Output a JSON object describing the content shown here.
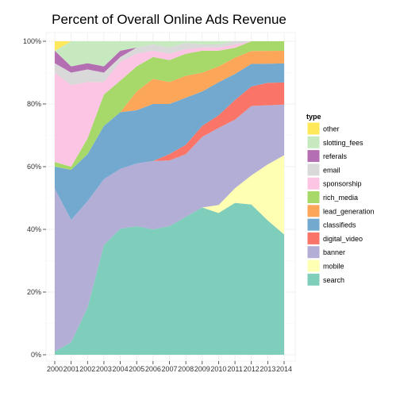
{
  "chart_data": {
    "type": "area",
    "stacked": true,
    "normalized": true,
    "title": "Percent of Overall Online Ads Revenue",
    "xlabel": "",
    "ylabel": "",
    "x": [
      "2000",
      "2001",
      "2002",
      "2003",
      "2004",
      "2005",
      "2006",
      "2007",
      "2008",
      "2009",
      "2010",
      "2011",
      "2012",
      "2013",
      "2014"
    ],
    "ylim": [
      0,
      100
    ],
    "yticks": [
      "0%",
      "20%",
      "40%",
      "60%",
      "80%",
      "100%"
    ],
    "legend": {
      "title": "type",
      "position": "right"
    },
    "background": "#ffffff",
    "grid": true,
    "series": [
      {
        "name": "search",
        "color": "#7fcdbb",
        "values": [
          1,
          4,
          15,
          35,
          40,
          41,
          40,
          41,
          44,
          47,
          45,
          46.5,
          46.5,
          42,
          38
        ]
      },
      {
        "name": "mobile",
        "color": "#ffffb3",
        "values": [
          0,
          0,
          0,
          0,
          0,
          0,
          0,
          0,
          0,
          0,
          2.5,
          4.5,
          9,
          17.5,
          25
        ]
      },
      {
        "name": "banner",
        "color": "#b3aed5",
        "values": [
          52,
          39,
          34,
          21,
          19,
          20,
          21.8,
          21,
          20,
          22.5,
          24.5,
          21,
          21.5,
          18.5,
          16
        ]
      },
      {
        "name": "digital_video",
        "color": "#fb7468",
        "values": [
          0,
          0,
          0,
          0,
          0,
          0,
          0,
          2,
          3,
          3.5,
          4,
          6,
          6,
          7,
          7
        ]
      },
      {
        "name": "classifieds",
        "color": "#74a9cf",
        "values": [
          7,
          16,
          15,
          17,
          18,
          17,
          18.2,
          16,
          15,
          11,
          10.5,
          8,
          7,
          6,
          6
        ]
      },
      {
        "name": "lead_generation",
        "color": "#fca65a",
        "values": [
          0,
          0,
          0,
          0,
          0,
          6,
          8,
          7,
          7,
          6,
          5,
          5,
          4,
          4,
          4
        ]
      },
      {
        "name": "rich_media",
        "color": "#a6d96a",
        "values": [
          1.5,
          1,
          5,
          10,
          10,
          8,
          7,
          7,
          7,
          7,
          5,
          3,
          3,
          3,
          3
        ]
      },
      {
        "name": "sponsorship",
        "color": "#fcc5e3",
        "values": [
          28.5,
          26,
          18,
          4,
          6,
          4,
          2,
          2,
          1.5,
          1,
          1,
          1,
          0,
          0,
          0
        ]
      },
      {
        "name": "email",
        "color": "#d9d9d9",
        "values": [
          3,
          4,
          4,
          3,
          1.5,
          2,
          2,
          2,
          2,
          1,
          1,
          1,
          0,
          0,
          0
        ]
      },
      {
        "name": "referals",
        "color": "#b46fb2",
        "values": [
          4,
          2,
          2,
          2,
          2,
          0,
          0,
          0,
          0,
          0,
          0,
          0,
          0,
          0,
          0
        ]
      },
      {
        "name": "slotting_fees",
        "color": "#c7e9c0",
        "values": [
          0,
          8,
          7,
          8,
          3,
          2,
          1,
          2,
          0.5,
          1,
          1,
          0,
          0,
          0,
          0
        ]
      },
      {
        "name": "other",
        "color": "#ffe95a",
        "values": [
          3,
          0,
          0,
          0,
          0,
          0,
          0,
          0,
          0,
          0,
          0,
          0,
          0,
          0,
          0
        ]
      }
    ],
    "legend_order": [
      "other",
      "slotting_fees",
      "referals",
      "email",
      "sponsorship",
      "rich_media",
      "lead_generation",
      "classifieds",
      "digital_video",
      "banner",
      "mobile",
      "search"
    ]
  }
}
